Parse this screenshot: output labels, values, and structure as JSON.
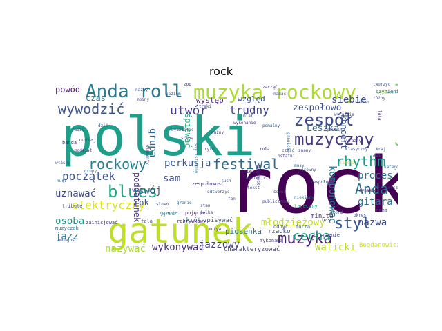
{
  "title": "rock",
  "words": [
    {
      "text": "polski",
      "color": "#1f9e89"
    },
    {
      "text": "rock",
      "color": "#440154"
    },
    {
      "text": "gatunek",
      "color": "#bddf26"
    },
    {
      "text": "muzyka rockowy",
      "color": "#addc30"
    },
    {
      "text": "Anda roll",
      "color": "#2a788e"
    },
    {
      "text": "zespół",
      "color": "#3e4a89"
    },
    {
      "text": "muzyczny",
      "color": "#443983"
    },
    {
      "text": "wywodzić",
      "color": "#3b528b"
    },
    {
      "text": "festiwal",
      "color": "#31688e"
    },
    {
      "text": "rockowy",
      "color": "#287c8e"
    },
    {
      "text": "rhythm",
      "color": "#1f9a8a"
    },
    {
      "text": "blues",
      "color": "#22a884"
    },
    {
      "text": "Anda",
      "color": "#2c728e"
    },
    {
      "text": "styl",
      "color": "#38598c"
    },
    {
      "text": "muzyka",
      "color": "#482173"
    },
    {
      "text": "pierwszy",
      "color": "#6ccd5a"
    },
    {
      "text": "elektryczny",
      "color": "#dde318"
    },
    {
      "text": "początek",
      "color": "#3b528b"
    },
    {
      "text": "utwór",
      "color": "#433e85"
    },
    {
      "text": "trudny",
      "color": "#414487"
    },
    {
      "text": "zespołowo",
      "color": "#3b528b"
    },
    {
      "text": "cecha",
      "color": "#20a386"
    },
    {
      "text": "młodzieżowy",
      "color": "#c2df23"
    },
    {
      "text": "perkusja",
      "color": "#39558c"
    },
    {
      "text": "uznawać",
      "color": "#3e4a89"
    },
    {
      "text": "swój",
      "color": "#3b528b"
    },
    {
      "text": "sam",
      "color": "#3e4c8a"
    },
    {
      "text": "grupa",
      "color": "#31688e"
    },
    {
      "text": "podgatunek",
      "color": "#46327e"
    },
    {
      "text": "komponować",
      "color": "#2a768e"
    },
    {
      "text": "koncert",
      "color": "#3b528b"
    },
    {
      "text": "proces",
      "color": "#2c728e"
    },
    {
      "text": "gitara",
      "color": "#2c728e"
    },
    {
      "text": "nazwa",
      "color": "#3d4d8a"
    },
    {
      "text": "jazz",
      "color": "#2e6e8e"
    },
    {
      "text": "osoba",
      "color": "#1f968b"
    },
    {
      "text": "nazywać",
      "color": "#a8db34"
    },
    {
      "text": "wykonywać",
      "color": "#46307e"
    },
    {
      "text": "jazzowy",
      "color": "#424186"
    },
    {
      "text": "Walicki",
      "color": "#b8de29"
    },
    {
      "text": "siebie",
      "color": "#3d4e8a"
    },
    {
      "text": "Leszka",
      "color": "#2f6b8e"
    },
    {
      "text": "powód",
      "color": "#481a6c"
    },
    {
      "text": "czas",
      "color": "#277f8e"
    },
    {
      "text": "rok",
      "color": "#3b528b"
    },
    {
      "text": "śpiewać",
      "color": "#29af7f"
    },
    {
      "text": "występ",
      "color": "#481f70"
    },
    {
      "text": "względ",
      "color": "#3b518b"
    },
    {
      "text": "Bogdanowicz",
      "color": "#d8e219"
    },
    {
      "text": "piosenka",
      "color": "#2c718e"
    },
    {
      "text": "charakteryzować",
      "color": "#424086"
    },
    {
      "text": "skrót",
      "color": "#2c738e"
    },
    {
      "text": "opisywać",
      "color": "#3b528b"
    },
    {
      "text": "mykonama",
      "color": "#433d84"
    },
    {
      "text": "rzadko",
      "color": "#3f4889"
    },
    {
      "text": "odbyć",
      "color": "#3e4989"
    },
    {
      "text": "forma",
      "color": "#375a8c"
    },
    {
      "text": "minuta",
      "color": "#472c7a"
    },
    {
      "text": "zespołowość",
      "color": "#46337f"
    },
    {
      "text": "pojęcie",
      "color": "#482475"
    },
    {
      "text": "rozrywkowy",
      "color": "#481c6e"
    },
    {
      "text": "granie",
      "color": "#31688e"
    },
    {
      "text": "muzyczek",
      "color": "#2f6c8e"
    },
    {
      "text": "tribute",
      "color": "#3d4e8a"
    },
    {
      "text": "zainicjować",
      "color": "#463480"
    },
    {
      "text": "mnogość",
      "color": "#3e4c8a"
    },
    {
      "text": "banda",
      "color": "#472c7a"
    },
    {
      "text": "fala",
      "color": "#3e4a89"
    },
    {
      "text": "dzielić",
      "color": "#482677"
    },
    {
      "text": "rama",
      "color": "#414487"
    },
    {
      "text": "brzmienie",
      "color": "#3f4788"
    },
    {
      "text": "rodzaj",
      "color": "#3b528b"
    },
    {
      "text": "podział",
      "color": "#482878"
    },
    {
      "text": "grana",
      "color": "#2a788e"
    },
    {
      "text": "stan",
      "color": "#3e4c8a"
    },
    {
      "text": "polka",
      "color": "#3d4d8a"
    },
    {
      "text": "odtworzyć",
      "color": "#39568c"
    },
    {
      "text": "wymienić",
      "color": "#3e4a89"
    },
    {
      "text": "niekiedy",
      "color": "#2f6c8e"
    },
    {
      "text": "taneczny",
      "color": "#1e9c89"
    },
    {
      "text": "główny",
      "color": "#3f4788"
    },
    {
      "text": "masy",
      "color": "#2c718e"
    },
    {
      "text": "ostatni",
      "color": "#424086"
    },
    {
      "text": "traki",
      "color": "#3d4e8a"
    },
    {
      "text": "zob",
      "color": "#482576"
    },
    {
      "text": "moiny",
      "color": "#46307e"
    },
    {
      "text": "rytm",
      "color": "#3e4989"
    },
    {
      "text": "miał",
      "color": "#3b528b"
    },
    {
      "text": "pomalny",
      "color": "#39568c"
    },
    {
      "text": "powolny",
      "color": "#3e4c8a"
    },
    {
      "text": "wyraźnie",
      "color": "#3f4788"
    },
    {
      "text": "istota",
      "color": "#b5de2b"
    },
    {
      "text": "wybierać",
      "color": "#9fda3a"
    },
    {
      "text": "tworzyć",
      "color": "#3d4e8a"
    },
    {
      "text": "czynienie",
      "color": "#2e6f8e"
    },
    {
      "text": "różny",
      "color": "#3e4c8a"
    },
    {
      "text": "lata",
      "color": "#482475"
    },
    {
      "text": "okres",
      "color": "#3e4989"
    },
    {
      "text": "nazwy",
      "color": "#3b528b"
    },
    {
      "text": "zacząć",
      "color": "#46327e"
    },
    {
      "text": "nadać",
      "color": "#3b528b"
    },
    {
      "text": "stylistyczny",
      "color": "#2b758e"
    },
    {
      "text": "elementy",
      "color": "#3f4889"
    },
    {
      "text": "granica",
      "color": "#31688e"
    },
    {
      "text": "ważny",
      "color": "#3e4c8a"
    },
    {
      "text": "dynamiczny",
      "color": "#440154"
    },
    {
      "text": "wydzielić",
      "color": "#3f4788"
    },
    {
      "text": "motyw",
      "color": "#482173"
    },
    {
      "text": "kończony",
      "color": "#3e4a89"
    },
    {
      "text": "przemysł",
      "color": "#46327e"
    },
    {
      "text": "znany",
      "color": "#3b528b"
    },
    {
      "text": "tekst",
      "color": "#3e4c8a"
    },
    {
      "text": "kategoria",
      "color": "#2c718e"
    },
    {
      "text": "własny",
      "color": "#3b528b"
    },
    {
      "text": "grupy",
      "color": "#31688e"
    },
    {
      "text": "zespołu",
      "color": "#3e4989"
    },
    {
      "text": "wykonanie",
      "color": "#46307e"
    },
    {
      "text": "sceną",
      "color": "#424086"
    },
    {
      "text": "poziom",
      "color": "#3b528b"
    },
    {
      "text": "dziś",
      "color": "#39568c"
    },
    {
      "text": "radio",
      "color": "#3e4c8a"
    },
    {
      "text": "słowo",
      "color": "#3d4e8a"
    },
    {
      "text": "granie",
      "color": "#2f6c8e"
    },
    {
      "text": "wyraźny",
      "color": "#46327e"
    },
    {
      "text": "klasyczny",
      "color": "#3b528b"
    },
    {
      "text": "scena",
      "color": "#424086"
    },
    {
      "text": "publiczność",
      "color": "#3e4a89"
    },
    {
      "text": "sukces",
      "color": "#3b528b"
    },
    {
      "text": "bas",
      "color": "#3e4c8a"
    },
    {
      "text": "akord",
      "color": "#31688e"
    },
    {
      "text": "ruch",
      "color": "#3b528b"
    },
    {
      "text": "fan",
      "color": "#3e4a89"
    },
    {
      "text": "rola",
      "color": "#46327e"
    },
    {
      "text": "część",
      "color": "#3b528b"
    },
    {
      "text": "nurt",
      "color": "#31688e"
    },
    {
      "text": "dwa",
      "color": "#3e4c8a"
    },
    {
      "text": "kraj",
      "color": "#3b528b"
    }
  ]
}
